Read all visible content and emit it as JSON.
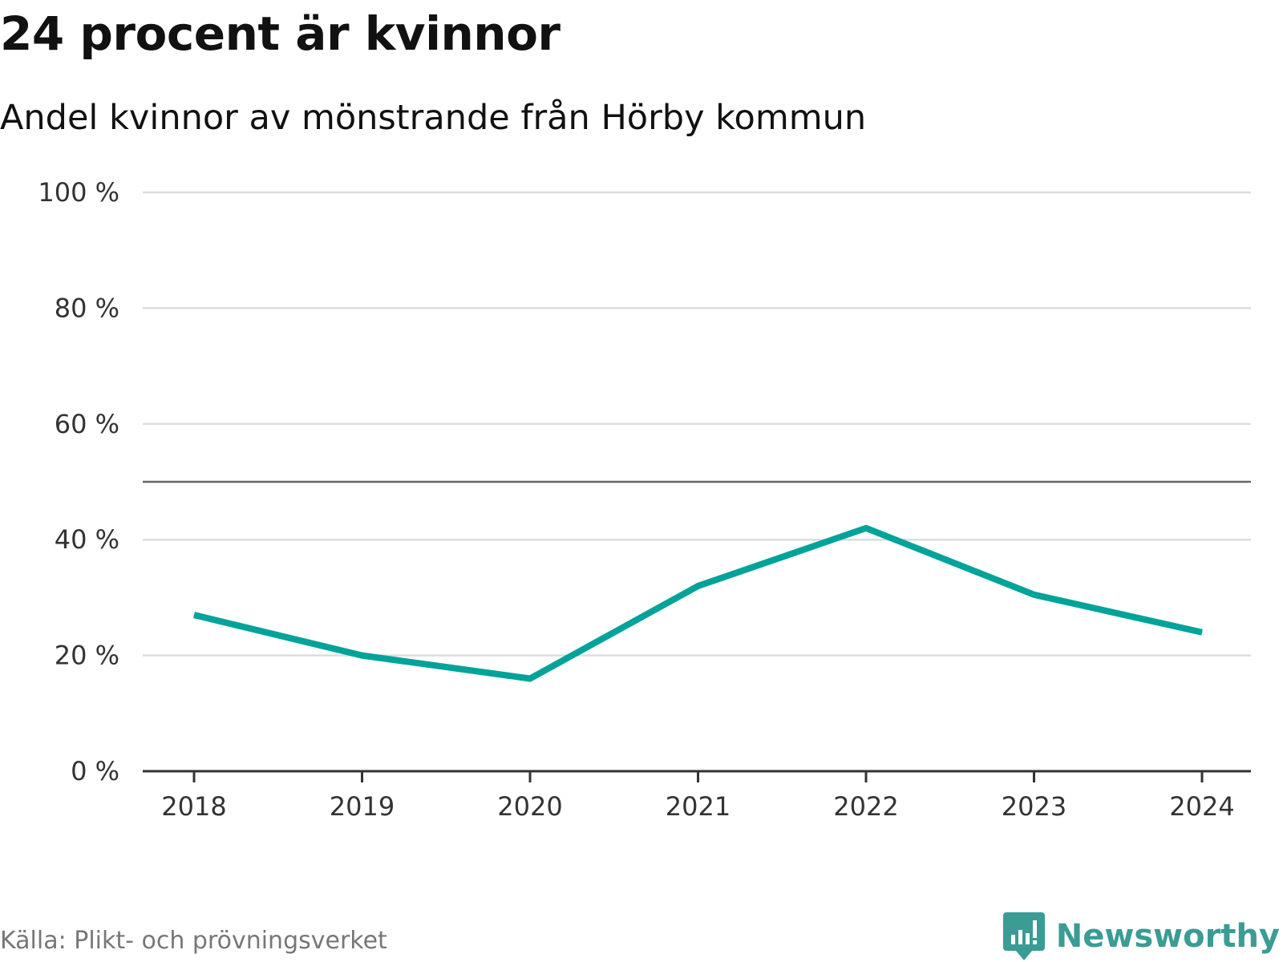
{
  "chart_data": {
    "type": "line",
    "title": "24 procent är kvinnor",
    "subtitle": "Andel kvinnor av mönstrande från Hörby kommun",
    "x": [
      "2018",
      "2019",
      "2020",
      "2021",
      "2022",
      "2023",
      "2024"
    ],
    "series": [
      {
        "values": [
          27,
          20,
          16,
          32,
          42,
          30.5,
          24
        ],
        "color": "#00a39a"
      }
    ],
    "y_ticks": [
      "0 %",
      "20 %",
      "40 %",
      "60 %",
      "80 %",
      "100 %"
    ],
    "ylim": [
      0,
      100
    ],
    "reference_line": 50,
    "grid": true,
    "legend": "none"
  },
  "source": "Källa: Plikt- och prövningsverket",
  "brand": {
    "name": "Newsworthy",
    "icon": "newsworthy-logo-icon",
    "color": "#3a9c94"
  },
  "colors": {
    "line": "#00a39a",
    "grid": "#dddddd",
    "reference": "#666666",
    "axis": "#333333"
  }
}
